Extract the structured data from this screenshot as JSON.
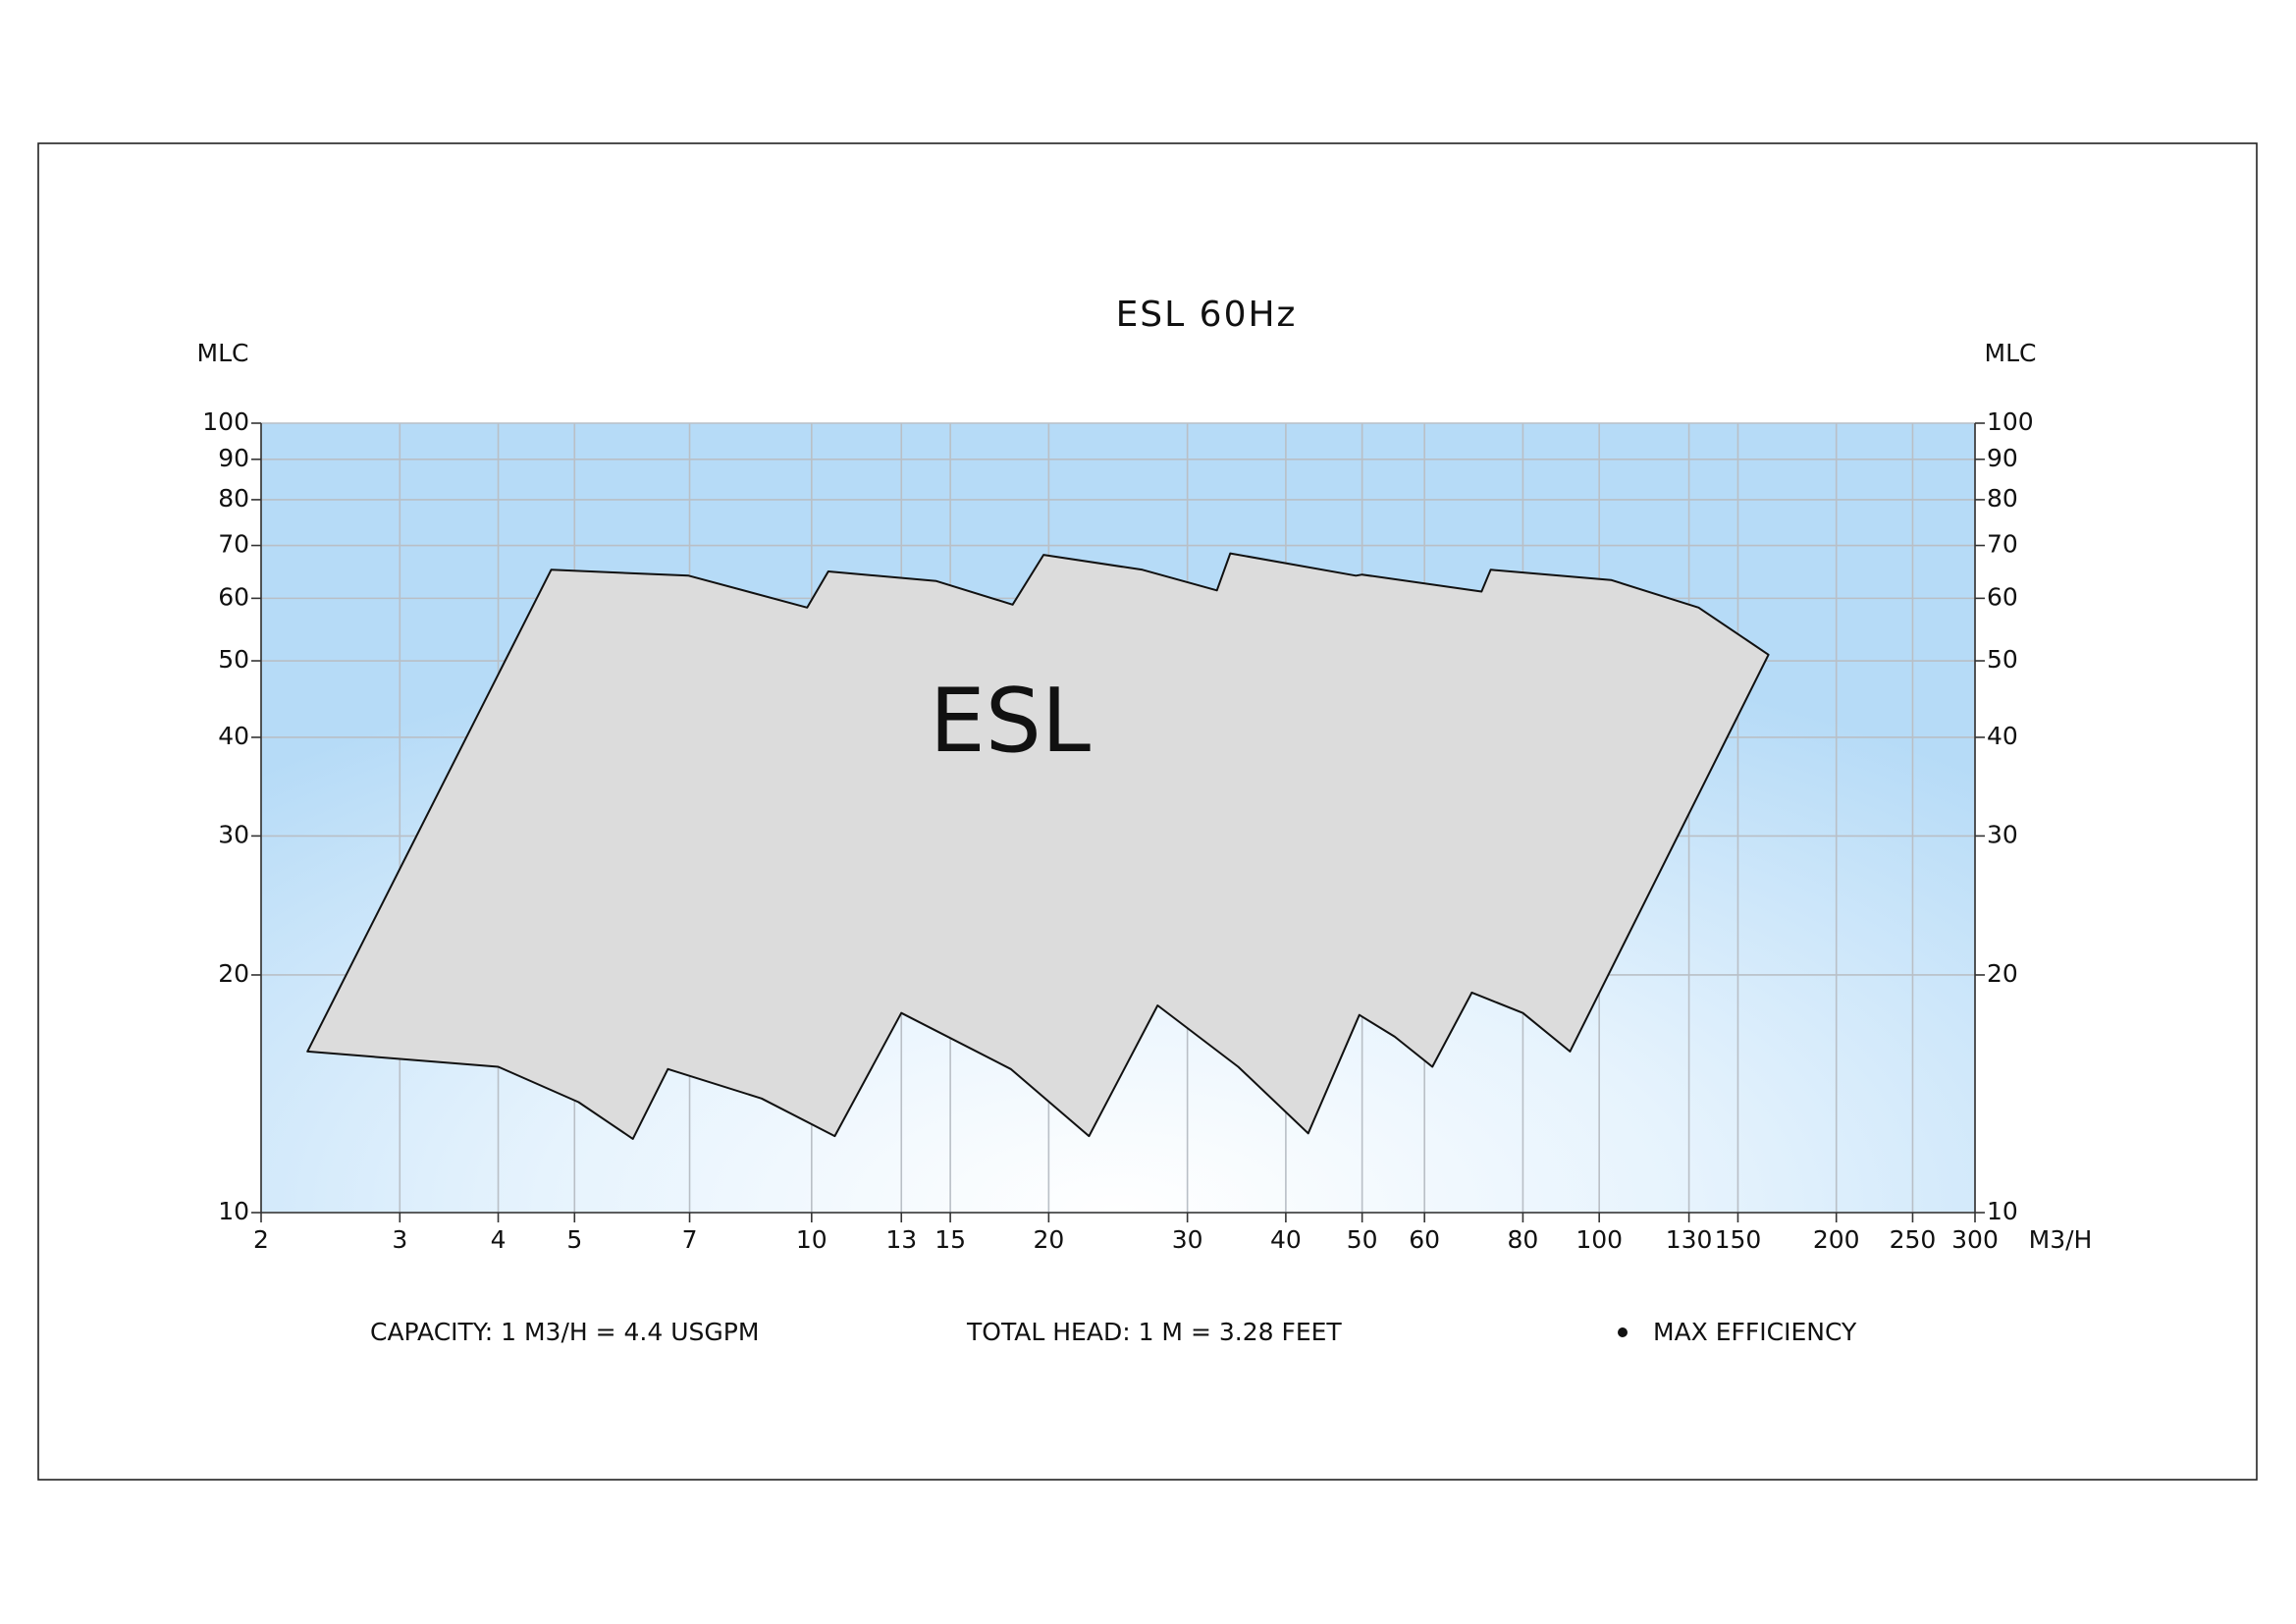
{
  "chart_data": {
    "type": "area",
    "title": "ESL  60Hz",
    "ylabel": "MLC",
    "xlabel": "M3/H",
    "xscale": "log",
    "yscale": "log",
    "grid": true,
    "xlim": [
      2,
      300
    ],
    "ylim": [
      10,
      100
    ],
    "xticks": [
      2,
      3,
      4,
      5,
      7,
      10,
      13,
      15,
      20,
      30,
      40,
      50,
      60,
      80,
      100,
      130,
      150,
      200,
      250,
      300
    ],
    "yticks": [
      10,
      20,
      30,
      40,
      50,
      60,
      70,
      80,
      90,
      100
    ],
    "series": [
      {
        "name": "ESL",
        "color": "#dcdcdc",
        "x": [
          2.29,
          4.67,
          6.98,
          9.87,
          10.5,
          14.4,
          18.0,
          19.7,
          26.3,
          32.7,
          34.0,
          49.1,
          50.0,
          70.9,
          72.8,
          103.5,
          133.7,
          164,
          91.8,
          80.0,
          68.9,
          61.4,
          55.0,
          49.6,
          42.7,
          34.8,
          27.5,
          22.5,
          17.9,
          13.0,
          10.7,
          8.64,
          6.57,
          5.93,
          5.06,
          4.0,
          2.29
        ],
        "values": [
          16.0,
          65.2,
          64.1,
          58.4,
          64.9,
          63.1,
          58.9,
          68.1,
          65.2,
          61.4,
          68.4,
          64.1,
          64.3,
          61.2,
          65.2,
          63.3,
          58.4,
          50.9,
          16.0,
          17.9,
          19.0,
          15.3,
          16.7,
          17.8,
          12.6,
          15.3,
          18.3,
          12.5,
          15.2,
          17.9,
          12.5,
          13.95,
          15.2,
          12.4,
          13.8,
          15.3,
          16.0
        ]
      }
    ],
    "notes": [
      "CAPACITY: 1 M3/H = 4.4 USGPM",
      "TOTAL HEAD: 1 M = 3.28 FEET",
      "MAX EFFICIENCY"
    ]
  }
}
